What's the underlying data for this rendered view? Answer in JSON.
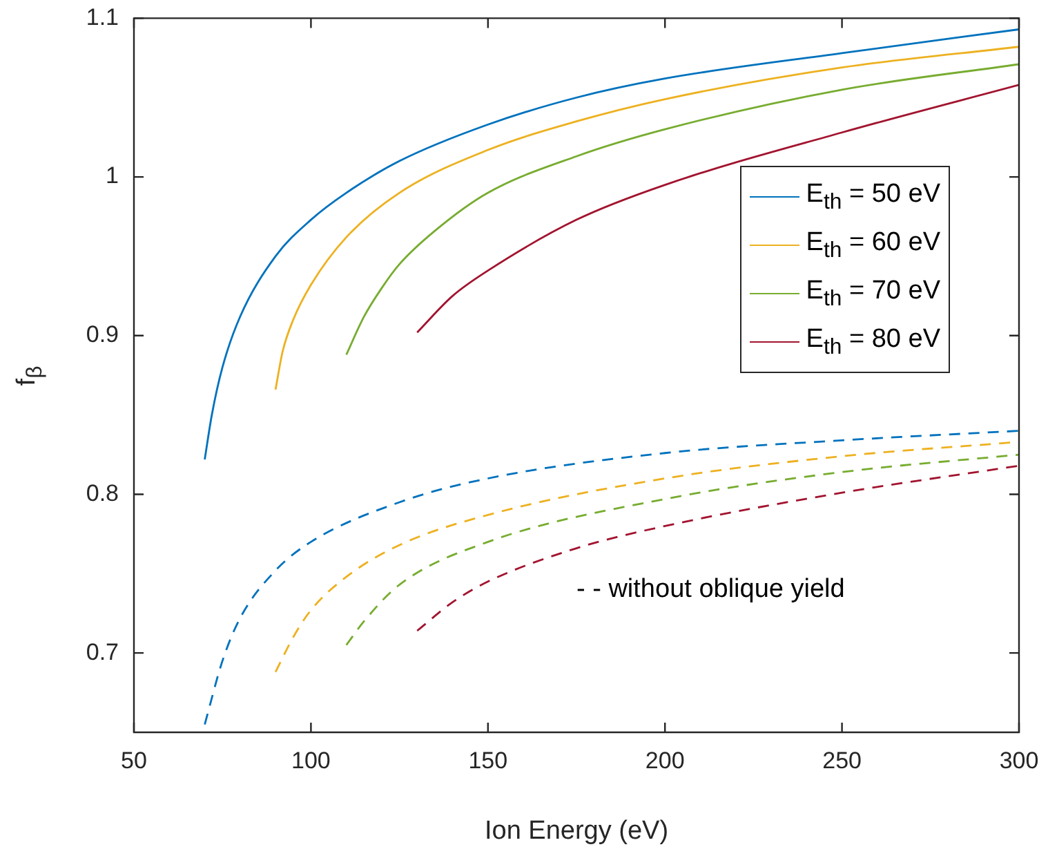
{
  "chart_data": {
    "type": "line",
    "xlabel": "Ion Energy (eV)",
    "ylabel": "f$_{β}$",
    "xlim": [
      50,
      300
    ],
    "ylim": [
      0.65,
      1.1
    ],
    "xticks": [
      50,
      100,
      150,
      200,
      250,
      300
    ],
    "yticks": [
      0.7,
      0.8,
      0.9,
      1,
      1.1
    ],
    "grid": false,
    "legend": "right",
    "marker": "none",
    "annotations": [
      "- - without oblique yield"
    ],
    "series": [
      {
        "name": "E$_{th}$ = 50 eV",
        "color": "#0072bd",
        "line_style": "solid",
        "x": [
          70,
          72,
          75,
          80,
          90,
          100,
          110,
          125,
          150,
          175,
          200,
          250,
          300
        ],
        "values": [
          0.822,
          0.85,
          0.88,
          0.912,
          0.95,
          0.973,
          0.99,
          1.01,
          1.033,
          1.05,
          1.062,
          1.078,
          1.093
        ]
      },
      {
        "name": "E$_{th}$ = 60 eV",
        "color": "#edb120",
        "line_style": "solid",
        "x": [
          90,
          92,
          95,
          100,
          110,
          125,
          150,
          175,
          200,
          250,
          300
        ],
        "values": [
          0.866,
          0.89,
          0.91,
          0.932,
          0.962,
          0.99,
          1.017,
          1.035,
          1.049,
          1.069,
          1.082
        ]
      },
      {
        "name": "E$_{th}$ = 70 eV",
        "color": "#77ac30",
        "line_style": "solid",
        "x": [
          110,
          115,
          120,
          125,
          135,
          150,
          175,
          200,
          250,
          300
        ],
        "values": [
          0.888,
          0.912,
          0.93,
          0.945,
          0.966,
          0.99,
          1.013,
          1.03,
          1.055,
          1.071
        ]
      },
      {
        "name": "E$_{th}$ = 80 eV",
        "color": "#a2142f",
        "line_style": "solid",
        "x": [
          130,
          140,
          150,
          175,
          200,
          250,
          300
        ],
        "values": [
          0.902,
          0.925,
          0.941,
          0.973,
          0.995,
          1.028,
          1.058
        ]
      },
      {
        "color": "#0072bd",
        "line_style": "dashed",
        "x": [
          70,
          75,
          80,
          90,
          100,
          125,
          150,
          200,
          250,
          300
        ],
        "values": [
          0.655,
          0.695,
          0.722,
          0.752,
          0.77,
          0.795,
          0.81,
          0.826,
          0.834,
          0.84
        ]
      },
      {
        "color": "#edb120",
        "line_style": "dashed",
        "x": [
          90,
          95,
          100,
          110,
          125,
          150,
          200,
          250,
          300
        ],
        "values": [
          0.688,
          0.71,
          0.727,
          0.748,
          0.768,
          0.787,
          0.81,
          0.824,
          0.833
        ]
      },
      {
        "color": "#77ac30",
        "line_style": "dashed",
        "x": [
          110,
          115,
          125,
          150,
          200,
          250,
          300
        ],
        "values": [
          0.705,
          0.72,
          0.743,
          0.77,
          0.797,
          0.814,
          0.825
        ]
      },
      {
        "color": "#a2142f",
        "line_style": "dashed",
        "x": [
          130,
          140,
          150,
          175,
          200,
          250,
          300
        ],
        "values": [
          0.714,
          0.732,
          0.745,
          0.766,
          0.78,
          0.801,
          0.818
        ]
      }
    ]
  }
}
